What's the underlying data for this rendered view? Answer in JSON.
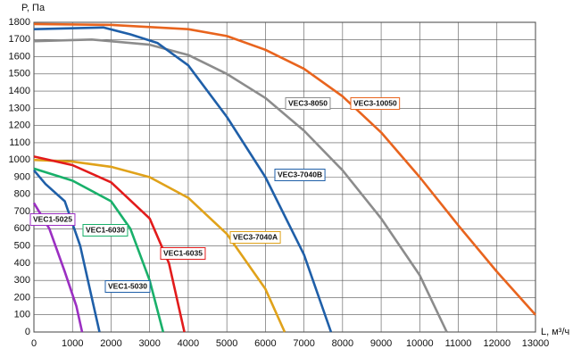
{
  "chart_data": {
    "type": "line",
    "y_label": "P, Па",
    "x_label": "L, м³/ч",
    "xlim": [
      0,
      13000
    ],
    "xticks": [
      0,
      1000,
      2000,
      3000,
      4000,
      5000,
      6000,
      7000,
      8000,
      9000,
      10000,
      11000,
      12000,
      13000
    ],
    "ylim": [
      0,
      1800
    ],
    "yticks": [
      0,
      100,
      200,
      300,
      400,
      500,
      600,
      700,
      800,
      900,
      1000,
      1100,
      1200,
      1300,
      1400,
      1500,
      1600,
      1700,
      1800
    ],
    "grid": true,
    "series": [
      {
        "name": "VEC3-10050",
        "color": "#e8641e",
        "x": [
          0,
          2000,
          4000,
          5000,
          6000,
          7000,
          8000,
          9000,
          10000,
          11000,
          12000,
          13000
        ],
        "values": [
          1790,
          1785,
          1760,
          1720,
          1640,
          1530,
          1370,
          1160,
          900,
          620,
          350,
          100
        ]
      },
      {
        "name": "VEC3-8050",
        "color": "#8c8c8c",
        "x": [
          0,
          1500,
          3000,
          4000,
          5000,
          6000,
          7000,
          8000,
          9000,
          10000,
          10700
        ],
        "values": [
          1690,
          1700,
          1670,
          1610,
          1500,
          1360,
          1170,
          940,
          660,
          330,
          0
        ]
      },
      {
        "name": "VEC3-7040B",
        "color": "#1f5fa8",
        "x": [
          0,
          1800,
          2500,
          3200,
          4000,
          5000,
          6000,
          7000,
          7700
        ],
        "values": [
          1760,
          1770,
          1730,
          1680,
          1550,
          1250,
          900,
          450,
          0
        ]
      },
      {
        "name": "VEC3-7040A",
        "color": "#e0a21a",
        "x": [
          0,
          1000,
          2000,
          3000,
          4000,
          5000,
          6000,
          6500
        ],
        "values": [
          1000,
          990,
          960,
          900,
          780,
          570,
          250,
          0
        ]
      },
      {
        "name": "VEC1-6035",
        "color": "#e21b1b",
        "x": [
          0,
          1000,
          2000,
          3000,
          3500,
          3900
        ],
        "values": [
          1020,
          970,
          870,
          660,
          400,
          0
        ]
      },
      {
        "name": "VEC1-6030",
        "color": "#19b06a",
        "x": [
          0,
          1000,
          2000,
          2500,
          3000,
          3350
        ],
        "values": [
          950,
          880,
          760,
          600,
          300,
          0
        ]
      },
      {
        "name": "VEC1-5030",
        "color": "#1f5fa8",
        "x": [
          0,
          300,
          800,
          1200,
          1500,
          1700
        ],
        "values": [
          940,
          860,
          760,
          500,
          200,
          0
        ]
      },
      {
        "name": "VEC1-5025",
        "color": "#9b2fc2",
        "x": [
          0,
          400,
          800,
          1100,
          1250
        ],
        "values": [
          750,
          600,
          350,
          150,
          0
        ]
      }
    ]
  }
}
